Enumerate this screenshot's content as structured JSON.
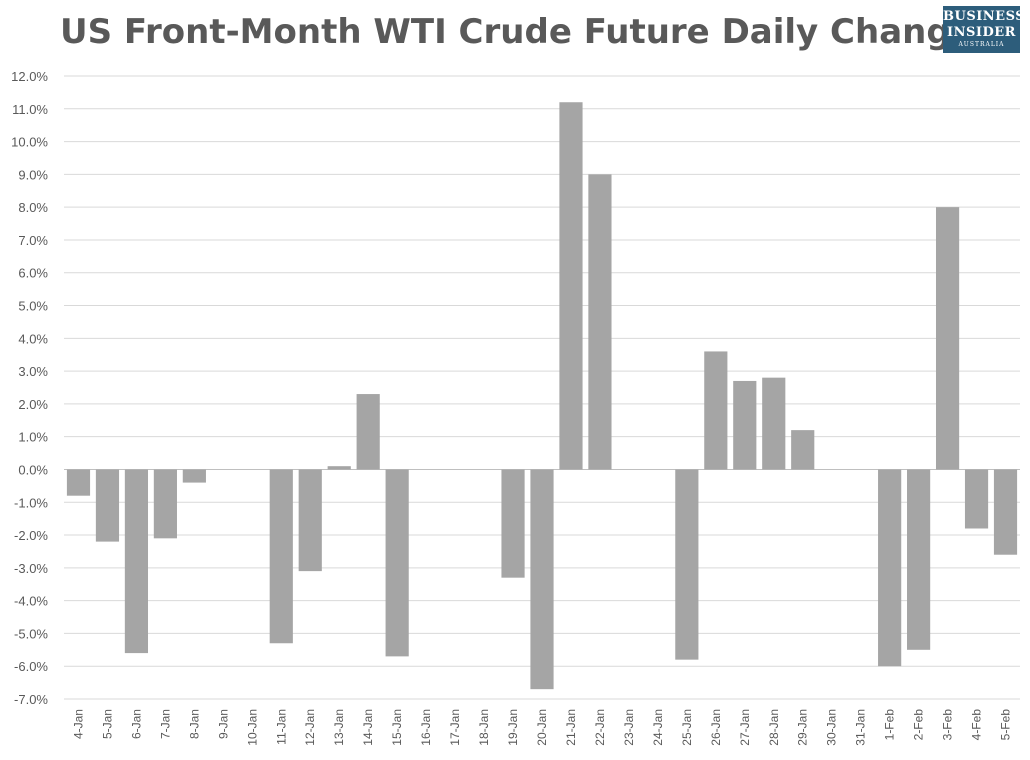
{
  "title": "US Front-Month WTI Crude Future Daily Change",
  "logo": {
    "line1": "BUSINESS",
    "line2": "INSIDER",
    "line3": "AUSTRALIA",
    "color": "#2d5d7b"
  },
  "chart_data": {
    "type": "bar",
    "title": "US Front-Month WTI Crude Future Daily Change",
    "xlabel": "",
    "ylabel": "",
    "ylim": [
      -7.0,
      12.0
    ],
    "ytick_step": 1.0,
    "y_unit": "%",
    "grid": true,
    "bar_color": "#a5a5a5",
    "categories": [
      "4-Jan",
      "5-Jan",
      "6-Jan",
      "7-Jan",
      "8-Jan",
      "9-Jan",
      "10-Jan",
      "11-Jan",
      "12-Jan",
      "13-Jan",
      "14-Jan",
      "15-Jan",
      "16-Jan",
      "17-Jan",
      "18-Jan",
      "19-Jan",
      "20-Jan",
      "21-Jan",
      "22-Jan",
      "23-Jan",
      "24-Jan",
      "25-Jan",
      "26-Jan",
      "27-Jan",
      "28-Jan",
      "29-Jan",
      "30-Jan",
      "31-Jan",
      "1-Feb",
      "2-Feb",
      "3-Feb",
      "4-Feb",
      "5-Feb"
    ],
    "values": [
      -0.8,
      -2.2,
      -5.6,
      -2.1,
      -0.4,
      0,
      0,
      -5.3,
      -3.1,
      0.1,
      2.3,
      -5.7,
      0,
      0,
      0,
      -3.3,
      -6.7,
      11.2,
      9.0,
      0,
      0,
      -5.8,
      3.6,
      2.7,
      2.8,
      1.2,
      0,
      0,
      -6.0,
      -5.5,
      8.0,
      -1.8,
      -2.6
    ]
  }
}
